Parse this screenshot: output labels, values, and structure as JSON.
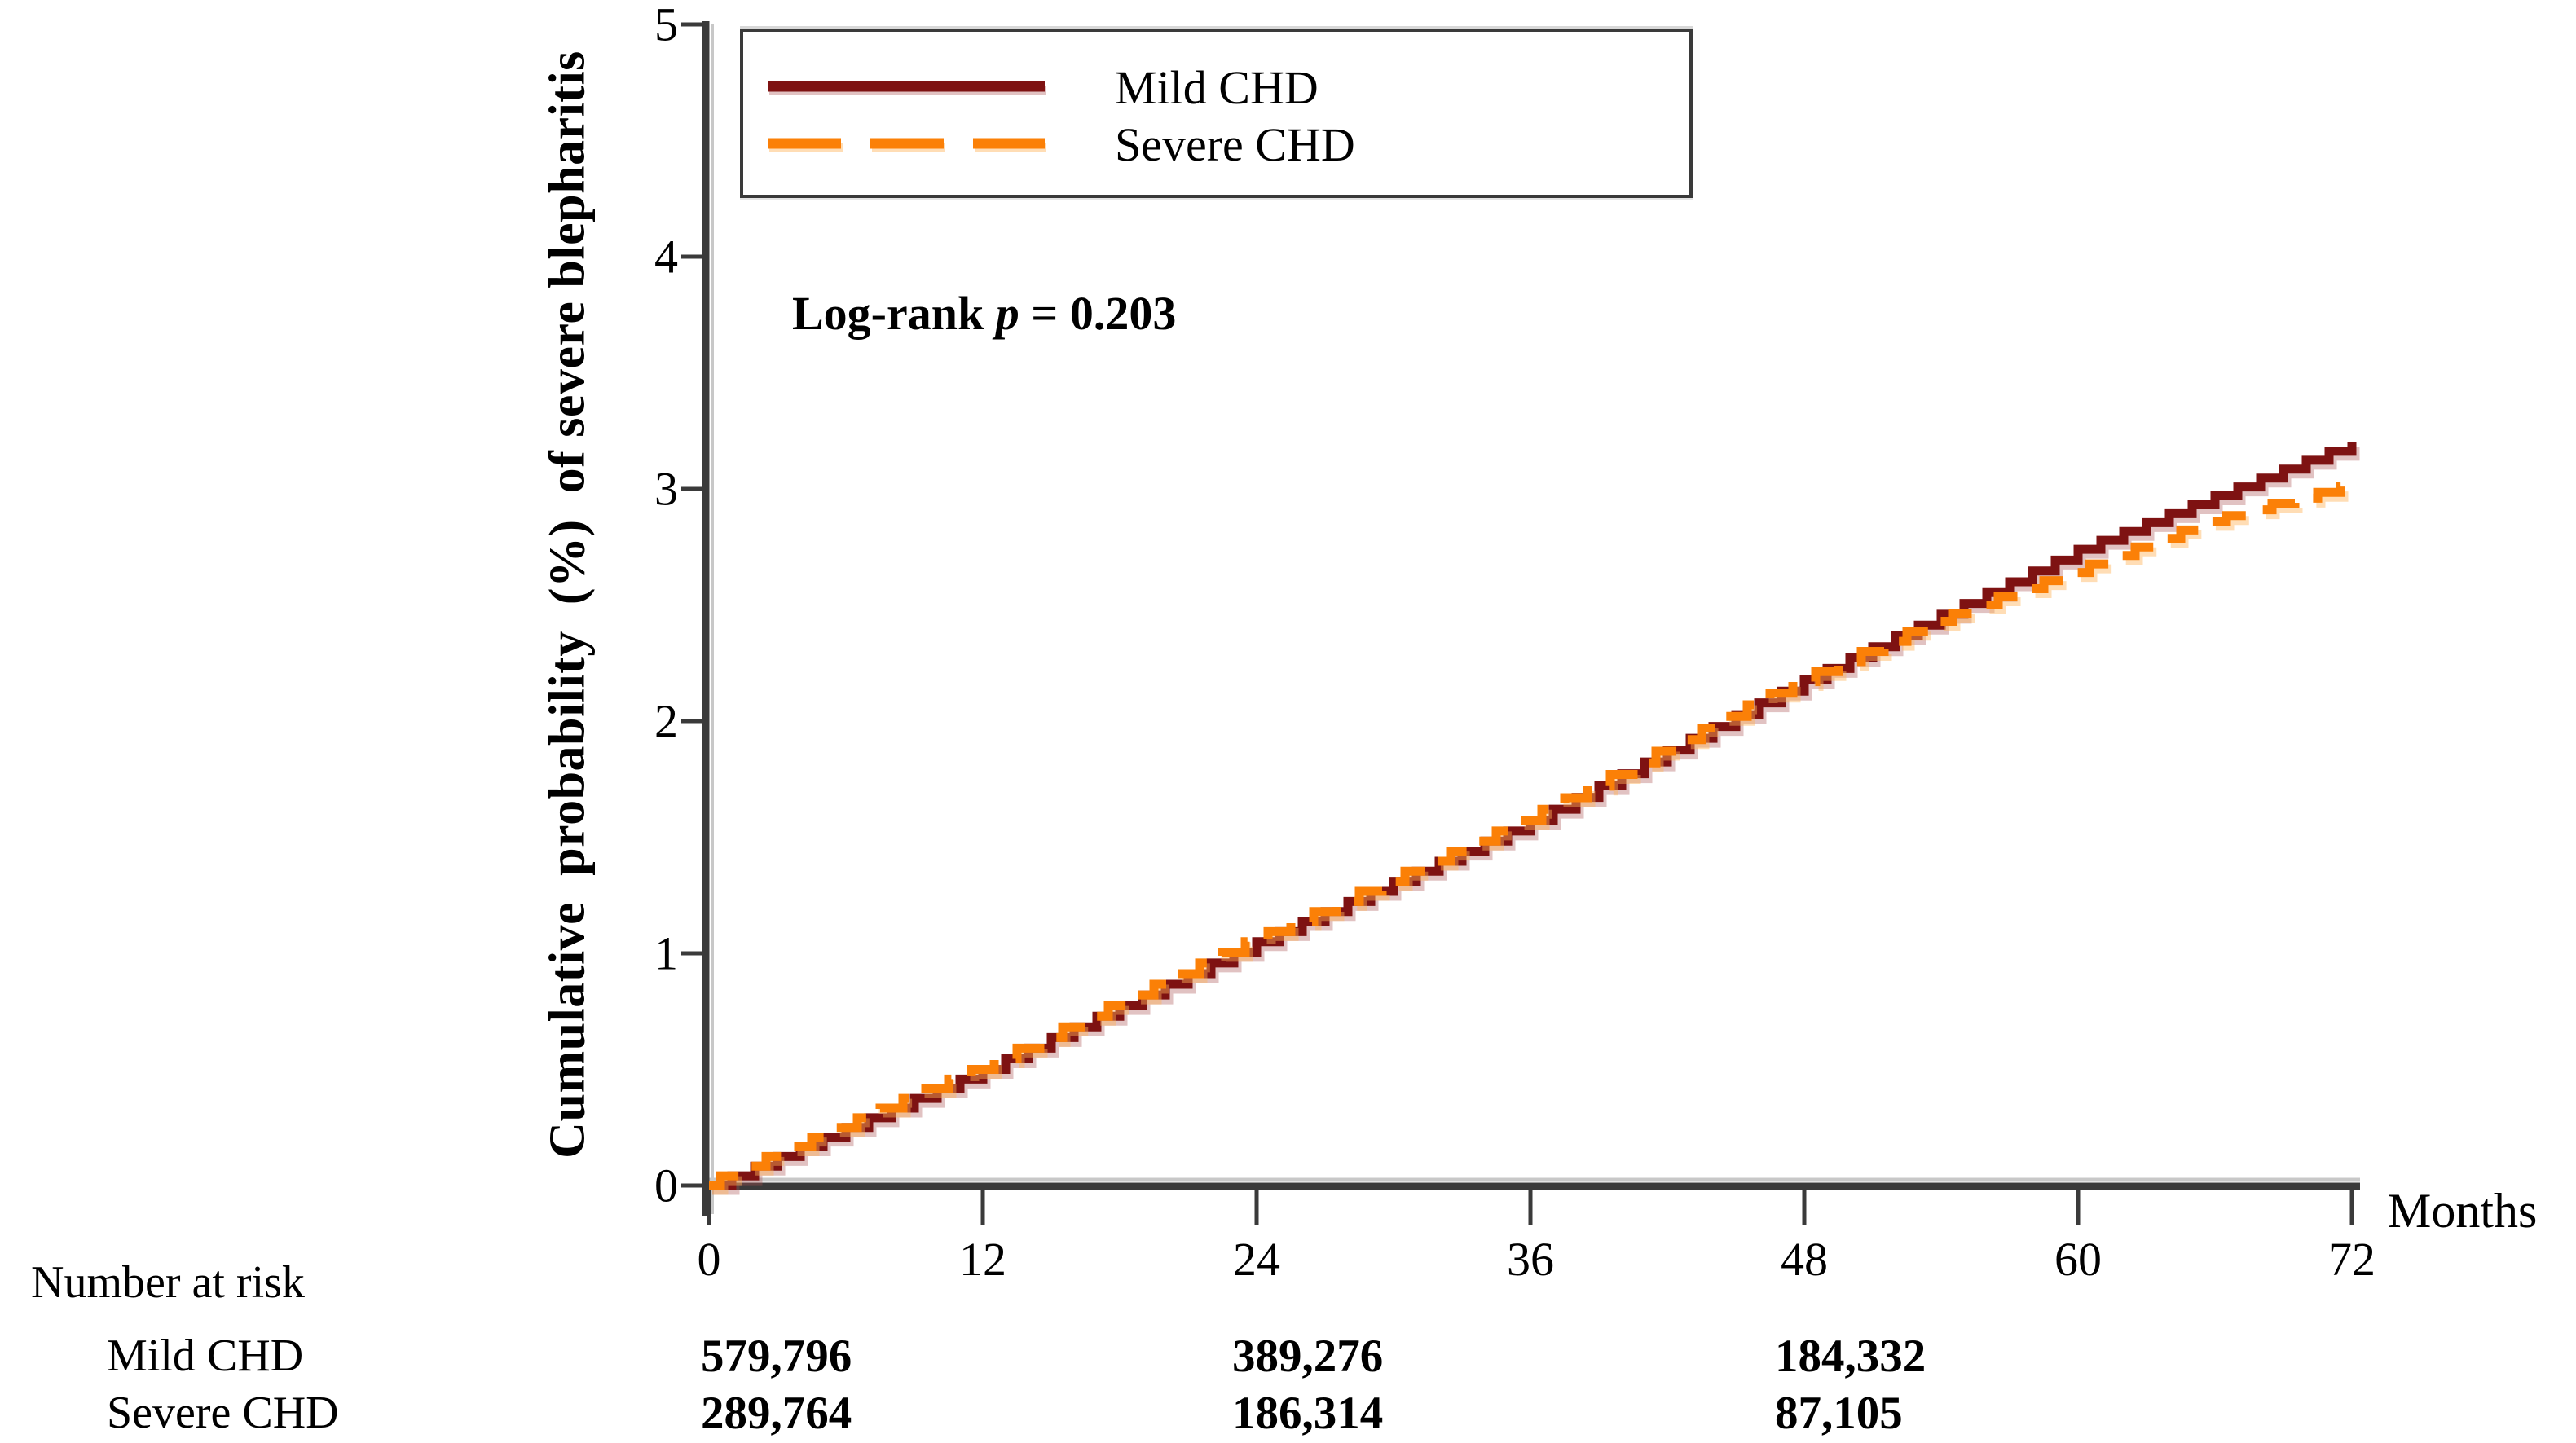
{
  "figure": {
    "y_axis_label_display": "Cumulative  probability  (%)  of severe blepharitis",
    "x_axis_label": "Months",
    "log_rank": {
      "prefix": "Log-rank ",
      "p_symbol": "p",
      "rest": " = 0.203"
    },
    "legend": [
      {
        "label": "Mild CHD",
        "line_style": "solid"
      },
      {
        "label": "Severe CHD",
        "line_style": "dashed"
      }
    ]
  },
  "colors": {
    "mild": "#7E1212",
    "mild_shadow": "rgba(170,80,80,0.35)",
    "severe": "#FB8007",
    "severe_shadow": "rgba(255,180,90,0.45)",
    "axis": "#3a3a3a",
    "axis_shadow": "#c8c8c8"
  },
  "chart_data": {
    "type": "line",
    "subtype": "kaplan-meier-cumulative-incidence-step",
    "title": "",
    "xlabel": "Months",
    "ylabel": "Cumulative probability (%) of severe blepharitis",
    "xlim": [
      0,
      72
    ],
    "ylim": [
      0,
      5
    ],
    "x_ticks": [
      0,
      12,
      24,
      36,
      48,
      60,
      72
    ],
    "y_ticks": [
      0,
      1,
      2,
      3,
      4,
      5
    ],
    "grid": false,
    "legend_position": "top-left-inside",
    "annotation": "Log-rank p = 0.203",
    "step_interval_months": 1,
    "series": [
      {
        "name": "Mild CHD",
        "style": "solid",
        "anchors_x": [
          0,
          12,
          24,
          36,
          48,
          54,
          60,
          66,
          72
        ],
        "anchors_y": [
          0,
          0.5,
          1.05,
          1.57,
          2.18,
          2.46,
          2.74,
          2.97,
          3.2
        ]
      },
      {
        "name": "Severe CHD",
        "style": "dashed",
        "anchors_x": [
          0,
          12,
          24,
          36,
          48,
          54,
          60,
          66,
          72
        ],
        "anchors_y": [
          0,
          0.5,
          1.05,
          1.57,
          2.17,
          2.43,
          2.64,
          2.86,
          3.01
        ]
      }
    ]
  },
  "number_at_risk": {
    "header": "Number at risk",
    "time_points": [
      0,
      24,
      48
    ],
    "rows": [
      {
        "label": "Mild CHD",
        "values": [
          "579,796",
          "389,276",
          "184,332"
        ]
      },
      {
        "label": "Severe CHD",
        "values": [
          "289,764",
          "186,314",
          "87,105"
        ]
      }
    ]
  }
}
